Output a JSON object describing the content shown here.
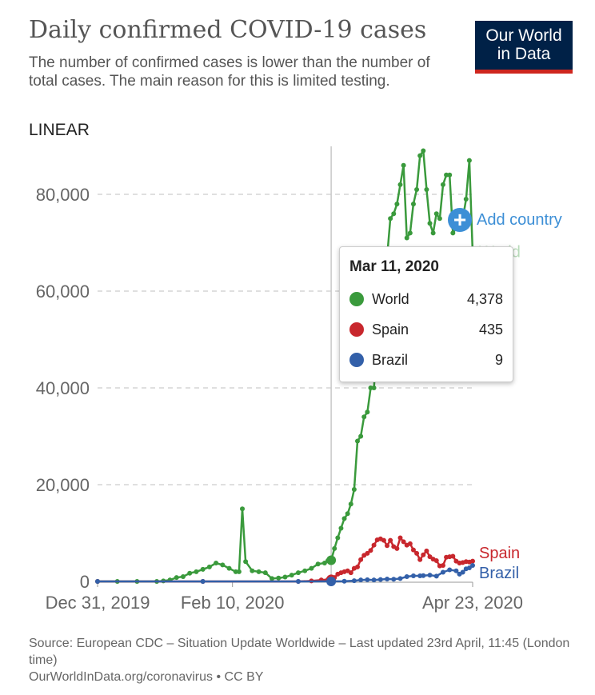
{
  "header": {
    "title": "Daily confirmed COVID-19 cases",
    "subtitle": "The number of confirmed cases is lower than the number of total cases. The main reason for this is limited testing.",
    "scale_toggle": "LINEAR",
    "logo_line1": "Our World",
    "logo_line2": "in Data"
  },
  "add_country_label": "Add country",
  "tooltip": {
    "date": "Mar 11, 2020",
    "rows": [
      {
        "name": "World",
        "value": "4,378",
        "color": "#3a9a3c"
      },
      {
        "name": "Spain",
        "value": "435",
        "color": "#c8272d"
      },
      {
        "name": "Brazil",
        "value": "9",
        "color": "#3360a9"
      }
    ]
  },
  "footer": {
    "source": "Source: European CDC – Situation Update Worldwide – Last updated 23rd April, 11:45 (London time)",
    "link": "OurWorldInData.org/coronavirus • CC BY"
  },
  "chart_data": {
    "type": "line",
    "title": "Daily confirmed COVID-19 cases",
    "y_ticks": [
      "0",
      "20,000",
      "40,000",
      "60,000",
      "80,000"
    ],
    "x_tick_labels": [
      "Dec 31, 2019",
      "Feb 10, 2020",
      "Apr 23, 2020"
    ],
    "x_ticks": [
      "2019-12-31",
      "2020-02-10",
      "2020-04-23"
    ],
    "x_range": [
      "2019-12-31",
      "2020-04-23"
    ],
    "ylim": [
      0,
      90000
    ],
    "grid": true,
    "hover_date": "2020-03-11",
    "series": [
      {
        "name": "World",
        "color": "#3a9a3c",
        "points": [
          [
            "2019-12-31",
            0
          ],
          [
            "2020-01-06",
            0
          ],
          [
            "2020-01-12",
            0
          ],
          [
            "2020-01-18",
            0
          ],
          [
            "2020-01-20",
            100
          ],
          [
            "2020-01-22",
            300
          ],
          [
            "2020-01-24",
            800
          ],
          [
            "2020-01-26",
            1000
          ],
          [
            "2020-01-28",
            1700
          ],
          [
            "2020-01-30",
            2000
          ],
          [
            "2020-02-01",
            2500
          ],
          [
            "2020-02-03",
            3000
          ],
          [
            "2020-02-05",
            3800
          ],
          [
            "2020-02-07",
            3400
          ],
          [
            "2020-02-09",
            2700
          ],
          [
            "2020-02-11",
            2000
          ],
          [
            "2020-02-12",
            2000
          ],
          [
            "2020-02-13",
            15000
          ],
          [
            "2020-02-14",
            4100
          ],
          [
            "2020-02-16",
            2200
          ],
          [
            "2020-02-18",
            2000
          ],
          [
            "2020-02-20",
            1800
          ],
          [
            "2020-02-22",
            600
          ],
          [
            "2020-02-24",
            700
          ],
          [
            "2020-02-26",
            900
          ],
          [
            "2020-02-28",
            1300
          ],
          [
            "2020-03-01",
            1800
          ],
          [
            "2020-03-03",
            2200
          ],
          [
            "2020-03-05",
            2700
          ],
          [
            "2020-03-07",
            3600
          ],
          [
            "2020-03-09",
            3800
          ],
          [
            "2020-03-10",
            4300
          ],
          [
            "2020-03-11",
            4378
          ],
          [
            "2020-03-12",
            6800
          ],
          [
            "2020-03-13",
            9000
          ],
          [
            "2020-03-14",
            11000
          ],
          [
            "2020-03-15",
            13000
          ],
          [
            "2020-03-16",
            14000
          ],
          [
            "2020-03-17",
            16000
          ],
          [
            "2020-03-18",
            19000
          ],
          [
            "2020-03-19",
            29000
          ],
          [
            "2020-03-20",
            30000
          ],
          [
            "2020-03-21",
            34000
          ],
          [
            "2020-03-22",
            35000
          ],
          [
            "2020-03-23",
            40000
          ],
          [
            "2020-03-24",
            40000
          ],
          [
            "2020-03-25",
            50000
          ],
          [
            "2020-03-26",
            56000
          ],
          [
            "2020-03-27",
            62000
          ],
          [
            "2020-03-28",
            67000
          ],
          [
            "2020-03-29",
            75000
          ],
          [
            "2020-03-30",
            76000
          ],
          [
            "2020-03-31",
            78000
          ],
          [
            "2020-04-01",
            82000
          ],
          [
            "2020-04-02",
            86000
          ],
          [
            "2020-04-03",
            71000
          ],
          [
            "2020-04-04",
            72000
          ],
          [
            "2020-04-05",
            78000
          ],
          [
            "2020-04-06",
            81000
          ],
          [
            "2020-04-07",
            88000
          ],
          [
            "2020-04-08",
            89000
          ],
          [
            "2020-04-09",
            81000
          ],
          [
            "2020-04-10",
            74000
          ],
          [
            "2020-04-11",
            72000
          ],
          [
            "2020-04-12",
            76000
          ],
          [
            "2020-04-13",
            75000
          ],
          [
            "2020-04-14",
            82000
          ],
          [
            "2020-04-15",
            84000
          ],
          [
            "2020-04-16",
            84000
          ],
          [
            "2020-04-17",
            72000
          ],
          [
            "2020-04-18",
            73000
          ],
          [
            "2020-04-19",
            74000
          ],
          [
            "2020-04-20",
            75000
          ],
          [
            "2020-04-21",
            79000
          ],
          [
            "2020-04-22",
            87000
          ],
          [
            "2020-04-23",
            68000
          ]
        ]
      },
      {
        "name": "Spain",
        "color": "#c8272d",
        "points": [
          [
            "2019-12-31",
            0
          ],
          [
            "2020-02-01",
            0
          ],
          [
            "2020-03-01",
            0
          ],
          [
            "2020-03-05",
            100
          ],
          [
            "2020-03-08",
            300
          ],
          [
            "2020-03-10",
            400
          ],
          [
            "2020-03-11",
            435
          ],
          [
            "2020-03-12",
            800
          ],
          [
            "2020-03-13",
            1500
          ],
          [
            "2020-03-14",
            1800
          ],
          [
            "2020-03-15",
            2000
          ],
          [
            "2020-03-16",
            2200
          ],
          [
            "2020-03-17",
            1800
          ],
          [
            "2020-03-18",
            2700
          ],
          [
            "2020-03-19",
            3000
          ],
          [
            "2020-03-20",
            4500
          ],
          [
            "2020-03-21",
            5400
          ],
          [
            "2020-03-22",
            5800
          ],
          [
            "2020-03-23",
            6400
          ],
          [
            "2020-03-24",
            7500
          ],
          [
            "2020-03-25",
            8600
          ],
          [
            "2020-03-26",
            8800
          ],
          [
            "2020-03-27",
            8500
          ],
          [
            "2020-03-28",
            7400
          ],
          [
            "2020-03-29",
            8500
          ],
          [
            "2020-03-30",
            7200
          ],
          [
            "2020-03-31",
            6800
          ],
          [
            "2020-04-01",
            9000
          ],
          [
            "2020-04-02",
            8200
          ],
          [
            "2020-04-03",
            7500
          ],
          [
            "2020-04-04",
            7800
          ],
          [
            "2020-04-05",
            6500
          ],
          [
            "2020-04-06",
            5800
          ],
          [
            "2020-04-07",
            4500
          ],
          [
            "2020-04-08",
            5500
          ],
          [
            "2020-04-09",
            6300
          ],
          [
            "2020-04-10",
            5100
          ],
          [
            "2020-04-11",
            4600
          ],
          [
            "2020-04-12",
            4300
          ],
          [
            "2020-04-13",
            3200
          ],
          [
            "2020-04-14",
            3300
          ],
          [
            "2020-04-15",
            5000
          ],
          [
            "2020-04-16",
            5100
          ],
          [
            "2020-04-17",
            5200
          ],
          [
            "2020-04-18",
            4200
          ],
          [
            "2020-04-19",
            3800
          ],
          [
            "2020-04-20",
            3900
          ],
          [
            "2020-04-21",
            4100
          ],
          [
            "2020-04-22",
            4000
          ],
          [
            "2020-04-23",
            4200
          ]
        ]
      },
      {
        "name": "Brazil",
        "color": "#3360a9",
        "points": [
          [
            "2019-12-31",
            0
          ],
          [
            "2020-02-01",
            0
          ],
          [
            "2020-03-01",
            0
          ],
          [
            "2020-03-11",
            9
          ],
          [
            "2020-03-15",
            50
          ],
          [
            "2020-03-18",
            150
          ],
          [
            "2020-03-20",
            300
          ],
          [
            "2020-03-22",
            350
          ],
          [
            "2020-03-24",
            300
          ],
          [
            "2020-03-26",
            400
          ],
          [
            "2020-03-28",
            500
          ],
          [
            "2020-03-30",
            450
          ],
          [
            "2020-04-01",
            600
          ],
          [
            "2020-04-03",
            1000
          ],
          [
            "2020-04-05",
            1150
          ],
          [
            "2020-04-07",
            1150
          ],
          [
            "2020-04-08",
            1200
          ],
          [
            "2020-04-10",
            1300
          ],
          [
            "2020-04-12",
            1100
          ],
          [
            "2020-04-14",
            1900
          ],
          [
            "2020-04-16",
            2400
          ],
          [
            "2020-04-18",
            2200
          ],
          [
            "2020-04-19",
            1500
          ],
          [
            "2020-04-20",
            1900
          ],
          [
            "2020-04-21",
            2600
          ],
          [
            "2020-04-22",
            2800
          ],
          [
            "2020-04-23",
            3300
          ]
        ]
      }
    ]
  }
}
